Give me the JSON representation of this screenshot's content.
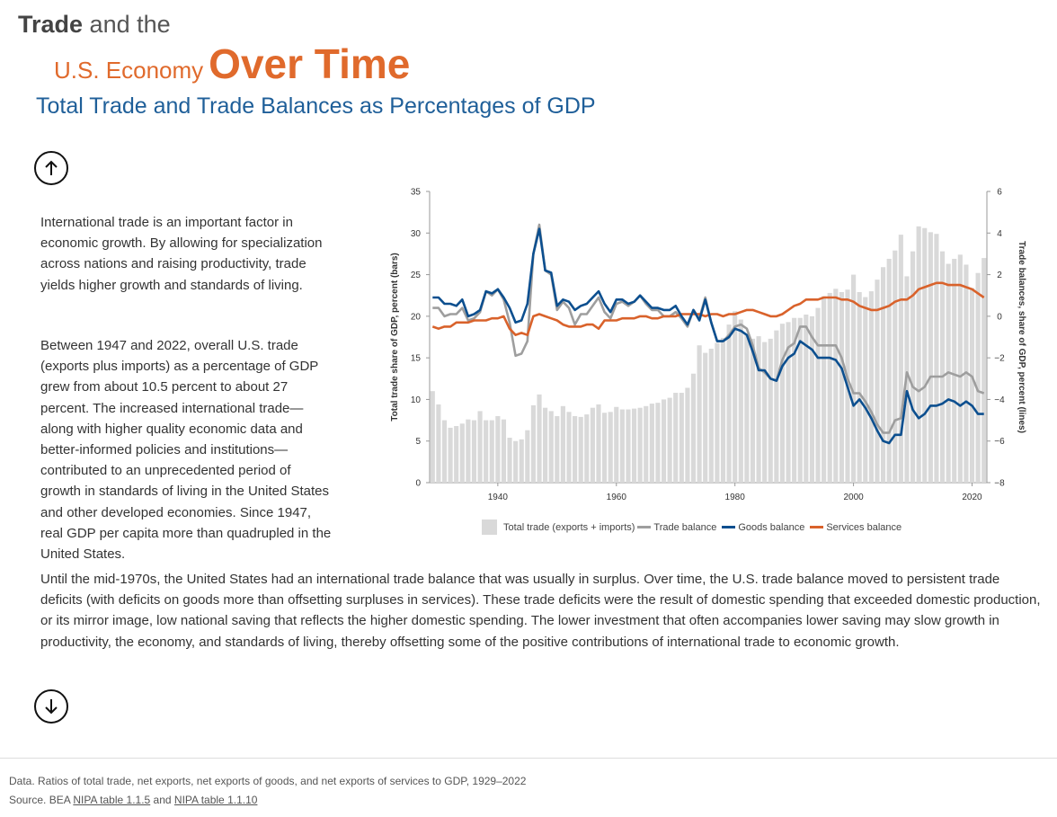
{
  "header": {
    "line1_bold": "Trade",
    "line1_rest": " and the",
    "line2_small": "U.S. Economy",
    "line2_big": "Over Time",
    "subtitle": "Total Trade and Trade Balances as Percentages of GDP"
  },
  "nav": {
    "up_icon": "arrow-up-icon",
    "down_icon": "arrow-down-icon"
  },
  "text": {
    "p1": "International trade is an important factor in economic growth. By allowing for specialization across nations and raising productivity, trade yields higher growth and standards of living.",
    "p2": "Between 1947 and 2022, overall U.S. trade (exports plus imports) as a percentage of GDP grew from about 10.5 percent to about 27 percent. The increased international trade—along with higher quality economic data and better-informed policies and institutions—contributed to an unprecedented period of growth in standards of living in the United States and other developed economies. Since 1947, real GDP per capita more than quadrupled in the United States.",
    "p3": "Until the mid-1970s, the United States had an international trade balance that was usually in surplus. Over time, the U.S. trade balance moved to persistent trade deficits (with deficits on goods more than offsetting surpluses in services). These trade deficits were the result of domestic spending that exceeded domestic production, or its mirror image, low national saving that reflects the higher domestic spending. The lower investment that often accompanies lower saving may slow growth in productivity, the economy, and standards of living, thereby offsetting some of the positive contributions of international trade to economic growth."
  },
  "footer": {
    "data_note": "Data. Ratios of total trade, net exports, net exports of goods, and net exports of services to GDP, 1929–2022",
    "source_prefix": "Source. BEA ",
    "link1": "NIPA table 1.1.5",
    "and": " and ",
    "link2": "NIPA table 1.1.10"
  },
  "chart_data": {
    "type": "bar+line",
    "xlim": [
      1929,
      2022
    ],
    "x_ticks": [
      1940,
      1960,
      1980,
      2000,
      2020
    ],
    "y_left": {
      "label": "Total trade share of GDP, percent (bars)",
      "range": [
        0,
        35
      ],
      "ticks": [
        0,
        5,
        10,
        15,
        20,
        25,
        30,
        35
      ]
    },
    "y_right": {
      "label": "Trade balances, share of GDP, percent (lines)",
      "range": [
        -8,
        6
      ],
      "ticks": [
        -8,
        -6,
        -4,
        -2,
        0,
        2,
        4,
        6
      ]
    },
    "legend": [
      "Total trade (exports + imports)",
      "Trade balance",
      "Goods balance",
      "Services balance"
    ],
    "colors": {
      "total_trade": "#d9d9d9",
      "trade_balance": "#9e9e9e",
      "goods_balance": "#0c4f8f",
      "services_balance": "#d9622b"
    },
    "series": [
      {
        "name": "Total trade (exports + imports)",
        "kind": "bar",
        "axis": "left",
        "x": [
          1929,
          1930,
          1931,
          1932,
          1933,
          1934,
          1935,
          1936,
          1937,
          1938,
          1939,
          1940,
          1941,
          1942,
          1943,
          1944,
          1945,
          1946,
          1947,
          1948,
          1949,
          1950,
          1951,
          1952,
          1953,
          1954,
          1955,
          1956,
          1957,
          1958,
          1959,
          1960,
          1961,
          1962,
          1963,
          1964,
          1965,
          1966,
          1967,
          1968,
          1969,
          1970,
          1971,
          1972,
          1973,
          1974,
          1975,
          1976,
          1977,
          1978,
          1979,
          1980,
          1981,
          1982,
          1983,
          1984,
          1985,
          1986,
          1987,
          1988,
          1989,
          1990,
          1991,
          1992,
          1993,
          1994,
          1995,
          1996,
          1997,
          1998,
          1999,
          2000,
          2001,
          2002,
          2003,
          2004,
          2005,
          2006,
          2007,
          2008,
          2009,
          2010,
          2011,
          2012,
          2013,
          2014,
          2015,
          2016,
          2017,
          2018,
          2019,
          2020,
          2021,
          2022
        ],
        "values": [
          11.0,
          9.4,
          7.5,
          6.6,
          6.8,
          7.1,
          7.6,
          7.5,
          8.6,
          7.5,
          7.5,
          8.0,
          7.6,
          5.4,
          5.0,
          5.2,
          6.3,
          9.3,
          10.6,
          9.0,
          8.6,
          8.0,
          9.2,
          8.5,
          8.0,
          7.9,
          8.2,
          9.0,
          9.4,
          8.4,
          8.5,
          9.1,
          8.8,
          8.8,
          8.9,
          9.0,
          9.2,
          9.5,
          9.6,
          10.0,
          10.2,
          10.8,
          10.8,
          11.4,
          13.1,
          16.5,
          15.6,
          16.1,
          16.8,
          17.4,
          19.0,
          20.6,
          19.6,
          17.8,
          17.3,
          17.6,
          16.9,
          17.3,
          18.3,
          19.1,
          19.3,
          19.8,
          19.8,
          20.2,
          20.0,
          21.0,
          22.4,
          22.8,
          23.3,
          22.9,
          23.2,
          25.0,
          22.9,
          22.3,
          23.0,
          24.4,
          25.9,
          26.9,
          27.9,
          29.8,
          24.8,
          27.8,
          30.8,
          30.6,
          30.1,
          29.9,
          27.8,
          26.3,
          26.9,
          27.4,
          26.2,
          23.4,
          25.2,
          27.0
        ]
      },
      {
        "name": "Trade balance",
        "kind": "line",
        "axis": "right",
        "x": [
          1929,
          1930,
          1931,
          1932,
          1933,
          1934,
          1935,
          1936,
          1937,
          1938,
          1939,
          1940,
          1941,
          1942,
          1943,
          1944,
          1945,
          1946,
          1947,
          1948,
          1949,
          1950,
          1951,
          1952,
          1953,
          1954,
          1955,
          1956,
          1957,
          1958,
          1959,
          1960,
          1961,
          1962,
          1963,
          1964,
          1965,
          1966,
          1967,
          1968,
          1969,
          1970,
          1971,
          1972,
          1973,
          1974,
          1975,
          1976,
          1977,
          1978,
          1979,
          1980,
          1981,
          1982,
          1983,
          1984,
          1985,
          1986,
          1987,
          1988,
          1989,
          1990,
          1991,
          1992,
          1993,
          1994,
          1995,
          1996,
          1997,
          1998,
          1999,
          2000,
          2001,
          2002,
          2003,
          2004,
          2005,
          2006,
          2007,
          2008,
          2009,
          2010,
          2011,
          2012,
          2013,
          2014,
          2015,
          2016,
          2017,
          2018,
          2019,
          2020,
          2021,
          2022
        ],
        "values": [
          0.4,
          0.4,
          0.0,
          0.1,
          0.1,
          0.4,
          -0.2,
          -0.1,
          0.2,
          1.2,
          1.0,
          1.3,
          0.8,
          -0.3,
          -1.9,
          -1.8,
          -1.2,
          3.0,
          4.4,
          2.2,
          2.0,
          0.3,
          0.7,
          0.4,
          -0.4,
          0.1,
          0.1,
          0.5,
          0.9,
          0.2,
          -0.1,
          0.6,
          0.7,
          0.5,
          0.7,
          1.0,
          0.6,
          0.3,
          0.3,
          0.0,
          0.0,
          0.2,
          -0.1,
          -0.5,
          0.3,
          -0.1,
          0.9,
          -0.3,
          -1.2,
          -1.2,
          -0.9,
          -0.5,
          -0.4,
          -0.6,
          -1.4,
          -2.5,
          -2.7,
          -3.0,
          -3.1,
          -2.1,
          -1.5,
          -1.3,
          -0.5,
          -0.5,
          -1.0,
          -1.4,
          -1.4,
          -1.4,
          -1.4,
          -2.0,
          -3.0,
          -3.7,
          -3.7,
          -4.1,
          -4.6,
          -5.2,
          -5.6,
          -5.6,
          -5.0,
          -4.9,
          -2.7,
          -3.4,
          -3.6,
          -3.4,
          -2.9,
          -2.9,
          -2.9,
          -2.7,
          -2.8,
          -2.9,
          -2.7,
          -2.9,
          -3.6,
          -3.7
        ]
      },
      {
        "name": "Goods balance",
        "kind": "line",
        "axis": "right",
        "x": [
          1929,
          1930,
          1931,
          1932,
          1933,
          1934,
          1935,
          1936,
          1937,
          1938,
          1939,
          1940,
          1941,
          1942,
          1943,
          1944,
          1945,
          1946,
          1947,
          1948,
          1949,
          1950,
          1951,
          1952,
          1953,
          1954,
          1955,
          1956,
          1957,
          1958,
          1959,
          1960,
          1961,
          1962,
          1963,
          1964,
          1965,
          1966,
          1967,
          1968,
          1969,
          1970,
          1971,
          1972,
          1973,
          1974,
          1975,
          1976,
          1977,
          1978,
          1979,
          1980,
          1981,
          1982,
          1983,
          1984,
          1985,
          1986,
          1987,
          1988,
          1989,
          1990,
          1991,
          1992,
          1993,
          1994,
          1995,
          1996,
          1997,
          1998,
          1999,
          2000,
          2001,
          2002,
          2003,
          2004,
          2005,
          2006,
          2007,
          2008,
          2009,
          2010,
          2011,
          2012,
          2013,
          2014,
          2015,
          2016,
          2017,
          2018,
          2019,
          2020,
          2021,
          2022
        ],
        "values": [
          0.9,
          0.9,
          0.6,
          0.6,
          0.5,
          0.8,
          0.0,
          0.1,
          0.3,
          1.2,
          1.1,
          1.3,
          0.9,
          0.4,
          -0.3,
          -0.2,
          0.6,
          3.0,
          4.2,
          2.2,
          2.1,
          0.5,
          0.8,
          0.7,
          0.3,
          0.5,
          0.6,
          0.9,
          1.2,
          0.6,
          0.2,
          0.8,
          0.8,
          0.6,
          0.7,
          1.0,
          0.7,
          0.4,
          0.4,
          0.3,
          0.3,
          0.5,
          0.0,
          -0.4,
          0.3,
          -0.2,
          0.8,
          -0.3,
          -1.2,
          -1.2,
          -1.0,
          -0.6,
          -0.7,
          -0.9,
          -1.7,
          -2.6,
          -2.6,
          -3.0,
          -3.1,
          -2.4,
          -2.0,
          -1.8,
          -1.2,
          -1.4,
          -1.6,
          -2.0,
          -2.0,
          -2.0,
          -2.1,
          -2.5,
          -3.4,
          -4.3,
          -4.0,
          -4.4,
          -4.9,
          -5.5,
          -6.0,
          -6.1,
          -5.7,
          -5.7,
          -3.6,
          -4.5,
          -4.9,
          -4.7,
          -4.3,
          -4.3,
          -4.2,
          -4.0,
          -4.1,
          -4.3,
          -4.1,
          -4.3,
          -4.7,
          -4.7
        ]
      },
      {
        "name": "Services balance",
        "kind": "line",
        "axis": "right",
        "x": [
          1929,
          1930,
          1931,
          1932,
          1933,
          1934,
          1935,
          1936,
          1937,
          1938,
          1939,
          1940,
          1941,
          1942,
          1943,
          1944,
          1945,
          1946,
          1947,
          1948,
          1949,
          1950,
          1951,
          1952,
          1953,
          1954,
          1955,
          1956,
          1957,
          1958,
          1959,
          1960,
          1961,
          1962,
          1963,
          1964,
          1965,
          1966,
          1967,
          1968,
          1969,
          1970,
          1971,
          1972,
          1973,
          1974,
          1975,
          1976,
          1977,
          1978,
          1979,
          1980,
          1981,
          1982,
          1983,
          1984,
          1985,
          1986,
          1987,
          1988,
          1989,
          1990,
          1991,
          1992,
          1993,
          1994,
          1995,
          1996,
          1997,
          1998,
          1999,
          2000,
          2001,
          2002,
          2003,
          2004,
          2005,
          2006,
          2007,
          2008,
          2009,
          2010,
          2011,
          2012,
          2013,
          2014,
          2015,
          2016,
          2017,
          2018,
          2019,
          2020,
          2021,
          2022
        ],
        "values": [
          -0.5,
          -0.6,
          -0.5,
          -0.5,
          -0.3,
          -0.3,
          -0.3,
          -0.2,
          -0.2,
          -0.2,
          -0.1,
          -0.1,
          0.0,
          -0.6,
          -0.9,
          -0.8,
          -0.9,
          0.0,
          0.1,
          0.0,
          -0.1,
          -0.2,
          -0.4,
          -0.5,
          -0.5,
          -0.5,
          -0.4,
          -0.4,
          -0.6,
          -0.2,
          -0.2,
          -0.2,
          -0.1,
          -0.1,
          -0.1,
          0.0,
          0.0,
          -0.1,
          -0.1,
          0.0,
          0.0,
          0.0,
          0.1,
          0.1,
          0.1,
          0.1,
          0.0,
          0.1,
          0.1,
          0.0,
          0.1,
          0.1,
          0.2,
          0.3,
          0.3,
          0.2,
          0.1,
          0.0,
          0.0,
          0.1,
          0.3,
          0.5,
          0.6,
          0.8,
          0.8,
          0.8,
          0.9,
          0.9,
          0.9,
          0.8,
          0.8,
          0.7,
          0.5,
          0.4,
          0.3,
          0.3,
          0.4,
          0.5,
          0.7,
          0.8,
          0.8,
          1.0,
          1.3,
          1.4,
          1.5,
          1.6,
          1.6,
          1.5,
          1.5,
          1.5,
          1.4,
          1.3,
          1.1,
          0.9
        ]
      }
    ]
  }
}
